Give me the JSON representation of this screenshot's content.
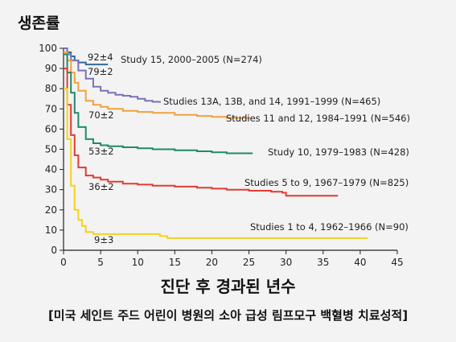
{
  "chart_data": {
    "type": "line",
    "ylabel": "생존률",
    "xlabel": "진단 후 경과된 년수",
    "caption": "[미국 세인트 주드 어린이 병원의 소아 급성 림프모구 백혈병 치료성적]",
    "xlim": [
      0,
      45
    ],
    "ylim": [
      0,
      100
    ],
    "x_ticks": [
      "0",
      "5",
      "10",
      "15",
      "20",
      "25",
      "30",
      "35",
      "40",
      "45"
    ],
    "y_ticks": [
      "0",
      "10",
      "20",
      "30",
      "40",
      "50",
      "60",
      "70",
      "80",
      "90",
      "100"
    ],
    "series": [
      {
        "name": "Study 15, 2000–2005 (N=274)",
        "color": "#2f6b9a",
        "annotation": "92±4",
        "x": [
          0,
          0.5,
          1,
          1.5,
          2,
          3,
          4,
          5,
          5.7,
          6
        ],
        "y": [
          100,
          98,
          96,
          94,
          93,
          92,
          92,
          92,
          92,
          92
        ]
      },
      {
        "name": "Studies 13A, 13B, and 14, 1991–1999 (N=465)",
        "color": "#7b72b6",
        "annotation": "79±2",
        "x": [
          0,
          0.5,
          1,
          2,
          3,
          4,
          5,
          6,
          7,
          8,
          9,
          10,
          11,
          12,
          13
        ],
        "y": [
          100,
          97,
          94,
          89,
          85,
          81,
          79,
          78,
          77,
          76.5,
          76,
          75,
          74,
          73.5,
          73
        ]
      },
      {
        "name": "Studies 11 and 12, 1984–1991 (N=546)",
        "color": "#f0a23f",
        "annotation": "70±2",
        "x": [
          0,
          0.5,
          1,
          1.5,
          2,
          3,
          4,
          5,
          6,
          8,
          10,
          12,
          15,
          18,
          20,
          22,
          25
        ],
        "y": [
          98,
          94,
          88,
          83,
          79,
          74,
          72,
          71,
          70,
          69,
          68.5,
          68,
          67,
          66.5,
          66,
          65.5,
          65
        ]
      },
      {
        "name": "Study 10, 1979–1983 (N=428)",
        "color": "#1f8a6a",
        "annotation": "53±2",
        "x": [
          0,
          0.5,
          1,
          1.5,
          2,
          3,
          4,
          5,
          6,
          8,
          10,
          12,
          15,
          18,
          20,
          22,
          25.5
        ],
        "y": [
          97,
          88,
          78,
          68,
          61,
          55,
          53,
          52,
          51.5,
          51,
          50.5,
          50,
          49.5,
          49,
          48.5,
          48,
          48
        ]
      },
      {
        "name": "Studies 5 to 9, 1967–1979 (N=825)",
        "color": "#e23b33",
        "annotation": "36±2",
        "x": [
          0,
          0.5,
          1,
          1.5,
          2,
          3,
          4,
          5,
          6,
          8,
          10,
          12,
          15,
          18,
          20,
          22,
          25,
          28,
          29.5,
          30,
          32,
          35,
          37
        ],
        "y": [
          90,
          72,
          57,
          47,
          41,
          37,
          36,
          35,
          34,
          33,
          32.5,
          32,
          31.5,
          31,
          30.5,
          30,
          29.5,
          29,
          28.5,
          27,
          27,
          27,
          27
        ]
      },
      {
        "name": "Studies 1 to 4, 1962–1966 (N=90)",
        "color": "#f3d21f",
        "annotation": "9±3",
        "x": [
          0,
          0.5,
          1,
          1.5,
          2,
          2.5,
          3,
          4,
          5,
          6,
          8,
          10,
          12,
          13,
          14,
          20,
          30,
          41
        ],
        "y": [
          80,
          55,
          32,
          20,
          15,
          12,
          9,
          8,
          8,
          8,
          8,
          8,
          8,
          7,
          6,
          6,
          6,
          6
        ]
      }
    ]
  }
}
